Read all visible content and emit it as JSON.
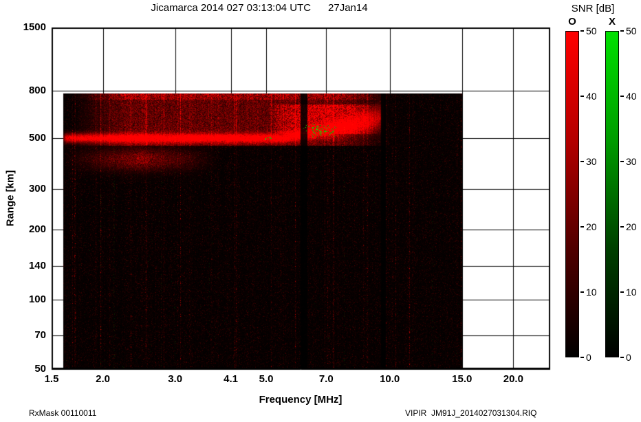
{
  "header": {
    "title": "Jicamarca 2014 027 03:13:04 UTC      27Jan14"
  },
  "footer": {
    "left": "RxMask 00110011",
    "right": "VIPIR  JM91J_2014027031304.RIQ"
  },
  "colorbar_panel": {
    "title": "SNR [dB]",
    "min_db": 0,
    "max_db": 50,
    "bars": [
      {
        "label": "O",
        "tick_labels": [
          "50",
          "40",
          "30",
          "20",
          "10",
          "0"
        ],
        "gradient": [
          "#ff0000",
          "#b40000",
          "#500000",
          "#000000"
        ]
      },
      {
        "label": "X",
        "tick_labels": [
          "50",
          "40",
          "30",
          "20",
          "10",
          "0"
        ],
        "gradient": [
          "#00e100",
          "#009c00",
          "#004000",
          "#000000"
        ]
      }
    ]
  },
  "chart_data": {
    "type": "heatmap",
    "title": "Jicamarca 2014 027 03:13:04 UTC      27Jan14",
    "xlabel": "Frequency [MHz]",
    "ylabel": "Range [km]",
    "x_scale": "log",
    "y_scale": "log",
    "x_ticks": [
      1.5,
      2.0,
      3.0,
      4.1,
      5.0,
      7.0,
      10.0,
      15.0,
      20.0
    ],
    "x_tick_labels": [
      "1.5",
      "2.0",
      "3.0",
      "4.1",
      "5.0",
      "7.0",
      "10.0",
      "15.0",
      "20.0"
    ],
    "y_ticks": [
      50,
      70,
      100,
      140,
      200,
      300,
      500,
      800,
      1500
    ],
    "y_tick_labels": [
      "50",
      "70",
      "100",
      "140",
      "200",
      "300",
      "500",
      "800",
      "1500"
    ],
    "x_range": [
      1.5,
      24.6
    ],
    "y_range": [
      50,
      1500
    ],
    "snr_range_db": [
      0,
      50
    ],
    "grid": true,
    "legend": {
      "title": "SNR [dB]",
      "entries": [
        "O",
        "X"
      ],
      "position": "right"
    },
    "data_extent": {
      "freq_mhz": [
        1.6,
        15.0
      ],
      "range_km": [
        50,
        780
      ]
    },
    "features": [
      {
        "name": "f-region-echo",
        "kind": "trace",
        "polarization": "O",
        "range_km": 500,
        "range_km_at_cusp": 620,
        "f_start_mhz": 1.6,
        "f_cusp_mhz": 5.5,
        "f_end_mhz": 9.7,
        "intensity_db": 50
      },
      {
        "name": "lower-diffuse-echo",
        "kind": "band",
        "polarization": "O",
        "range_km": 405,
        "f_mhz": [
          1.6,
          3.8
        ],
        "intensity_db": 25
      },
      {
        "name": "topside-spread",
        "kind": "region",
        "polarization": "O",
        "range_km": [
          510,
          780
        ],
        "f_mhz": [
          1.7,
          10.0
        ],
        "intensity_db": 15
      },
      {
        "name": "topside-spread-bright",
        "kind": "region",
        "polarization": "O",
        "range_km": [
          520,
          700
        ],
        "f_mhz": [
          5.0,
          9.6
        ],
        "intensity_db": 22
      },
      {
        "name": "x-mode-speckle-cluster",
        "kind": "speckle",
        "polarization": "X",
        "range_km": [
          500,
          580
        ],
        "f_mhz": [
          6.1,
          7.5
        ],
        "count": 95
      },
      {
        "name": "x-mode-speckle-small",
        "kind": "speckle",
        "polarization": "X",
        "range_km": [
          490,
          510
        ],
        "f_mhz": [
          4.9,
          5.15
        ],
        "count": 8
      },
      {
        "name": "data-gap",
        "kind": "gap",
        "f_mhz": [
          6.05,
          6.3
        ]
      },
      {
        "name": "data-gap-2",
        "kind": "gap",
        "f_mhz": [
          9.5,
          9.75
        ]
      }
    ],
    "noise": {
      "seed": 20140127,
      "rfi_column_fraction": 0.055,
      "background_color": "#000000",
      "signal_color_o": "#ff0000",
      "signal_color_x": "#00cc00"
    }
  }
}
